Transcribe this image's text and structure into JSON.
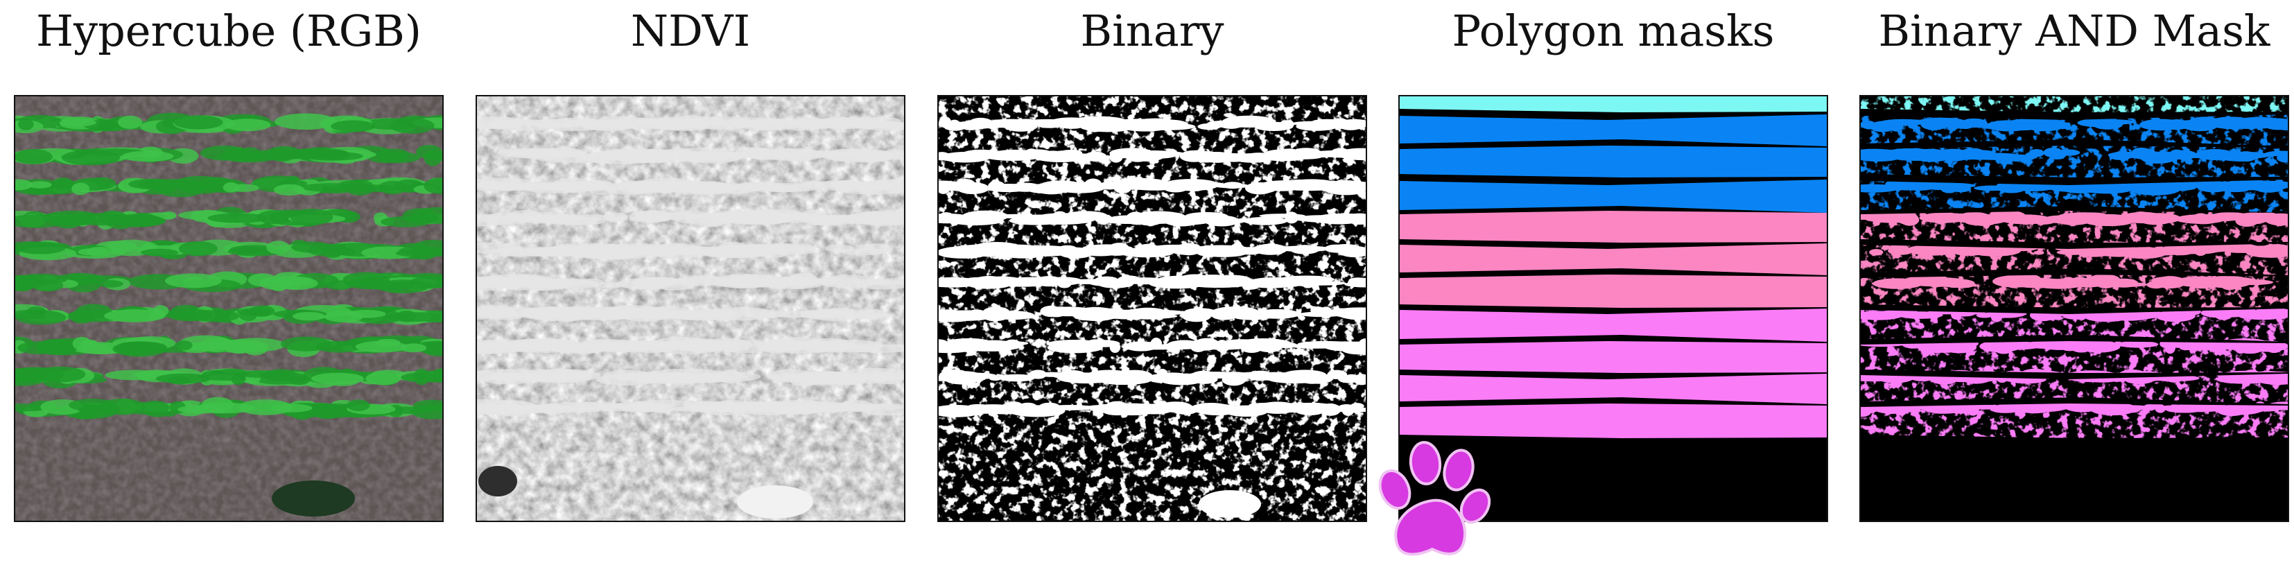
{
  "panels": [
    {
      "id": "rgb",
      "title": "Hypercube (RGB)"
    },
    {
      "id": "ndvi",
      "title": "NDVI"
    },
    {
      "id": "binary",
      "title": "Binary"
    },
    {
      "id": "masks",
      "title": "Polygon masks"
    },
    {
      "id": "and",
      "title": "Binary AND Mask"
    }
  ],
  "colors": {
    "background": "#ffffff",
    "frame": "#111111",
    "vegetation_green": "#1f9a2a",
    "soil_rgb": "#5e5555",
    "mask_cyan": "#7df7f4",
    "mask_blue": "#0a84f4",
    "mask_pink": "#fb86c2",
    "mask_magenta": "#fb7cf7",
    "paw_icon": "#d63ae0"
  },
  "icons": {
    "corner_overlay": "paw-print-icon"
  }
}
